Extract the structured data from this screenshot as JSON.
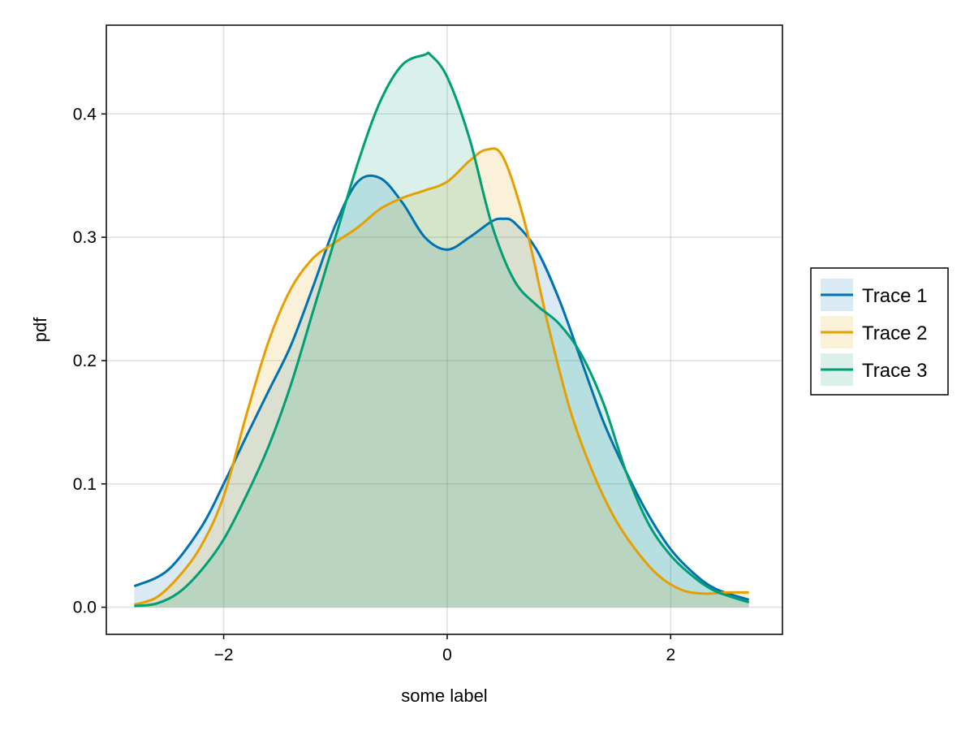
{
  "chart_data": {
    "type": "area",
    "xlabel": "some label",
    "ylabel": "pdf",
    "xlim": [
      -3.05,
      3.0
    ],
    "ylim": [
      -0.022,
      0.472
    ],
    "xticks": [
      -2,
      0,
      2
    ],
    "xtick_labels": [
      "−2",
      "0",
      "2"
    ],
    "yticks": [
      0.0,
      0.1,
      0.2,
      0.3,
      0.4
    ],
    "ytick_labels": [
      "0.0",
      "0.1",
      "0.2",
      "0.3",
      "0.4"
    ],
    "grid": true,
    "legend_position": "right",
    "series": [
      {
        "name": "Trace 1",
        "color": "#0072b2",
        "x": [
          -2.8,
          -2.5,
          -2.2,
          -2.0,
          -1.8,
          -1.6,
          -1.4,
          -1.2,
          -1.0,
          -0.8,
          -0.6,
          -0.4,
          -0.2,
          0.0,
          0.2,
          0.4,
          0.5,
          0.6,
          0.8,
          1.0,
          1.2,
          1.4,
          1.6,
          1.8,
          2.0,
          2.2,
          2.4,
          2.7
        ],
        "y": [
          0.017,
          0.03,
          0.065,
          0.1,
          0.138,
          0.175,
          0.212,
          0.26,
          0.31,
          0.345,
          0.348,
          0.328,
          0.3,
          0.29,
          0.3,
          0.313,
          0.315,
          0.312,
          0.29,
          0.25,
          0.2,
          0.15,
          0.11,
          0.075,
          0.047,
          0.028,
          0.015,
          0.006
        ]
      },
      {
        "name": "Trace 2",
        "color": "#e69f00",
        "x": [
          -2.8,
          -2.6,
          -2.4,
          -2.2,
          -2.0,
          -1.8,
          -1.6,
          -1.4,
          -1.2,
          -1.0,
          -0.8,
          -0.6,
          -0.4,
          -0.2,
          0.0,
          0.2,
          0.35,
          0.5,
          0.7,
          0.9,
          1.1,
          1.3,
          1.5,
          1.7,
          1.9,
          2.1,
          2.3,
          2.5,
          2.7
        ],
        "y": [
          0.002,
          0.008,
          0.025,
          0.05,
          0.09,
          0.155,
          0.215,
          0.258,
          0.283,
          0.296,
          0.308,
          0.323,
          0.332,
          0.338,
          0.345,
          0.362,
          0.371,
          0.365,
          0.31,
          0.23,
          0.16,
          0.11,
          0.072,
          0.045,
          0.025,
          0.014,
          0.011,
          0.012,
          0.012
        ]
      },
      {
        "name": "Trace 3",
        "color": "#009e73",
        "x": [
          -2.8,
          -2.6,
          -2.4,
          -2.2,
          -2.0,
          -1.8,
          -1.6,
          -1.4,
          -1.2,
          -1.0,
          -0.8,
          -0.6,
          -0.4,
          -0.2,
          -0.15,
          0.0,
          0.2,
          0.4,
          0.6,
          0.8,
          1.0,
          1.2,
          1.4,
          1.6,
          1.8,
          2.0,
          2.2,
          2.4,
          2.7
        ],
        "y": [
          0.001,
          0.003,
          0.012,
          0.03,
          0.055,
          0.09,
          0.13,
          0.18,
          0.24,
          0.3,
          0.36,
          0.41,
          0.44,
          0.448,
          0.448,
          0.43,
          0.38,
          0.31,
          0.265,
          0.245,
          0.23,
          0.205,
          0.165,
          0.11,
          0.068,
          0.042,
          0.025,
          0.013,
          0.004
        ]
      }
    ]
  }
}
